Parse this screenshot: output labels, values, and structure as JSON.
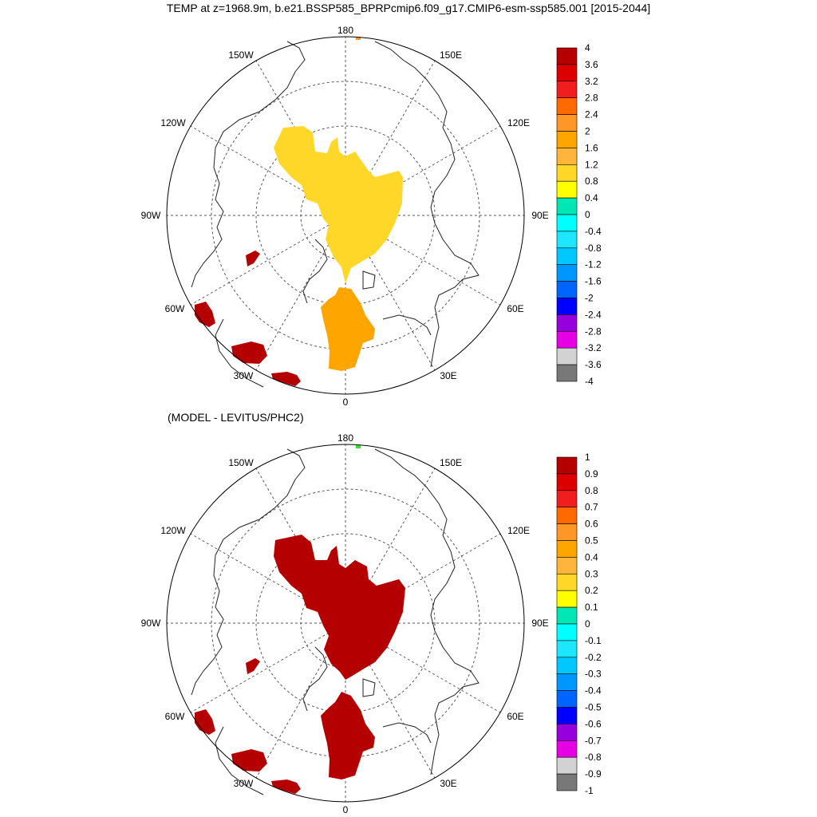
{
  "title": "TEMP at z=1968.9m, b.e21.BSSP585_BPRPcmip6.f09_g17.CMIP6-esm-ssp585.001 [2015-2044]",
  "subtitle": "(MODEL - LEVITUS/PHC2)",
  "longitude_labels": {
    "lon_180": "180",
    "lon_150e": "150E",
    "lon_120e": "120E",
    "lon_90e": "90E",
    "lon_60e": "60E",
    "lon_30e": "30E",
    "lon_0": "0",
    "lon_30w": "30W",
    "lon_60w": "60W",
    "lon_90w": "90W",
    "lon_120w": "120W",
    "lon_150w": "150W"
  },
  "top_colorbar": {
    "labels": [
      "4",
      "3.6",
      "3.2",
      "2.8",
      "2.4",
      "2",
      "1.6",
      "1.2",
      "0.8",
      "0.4",
      "0",
      "-0.4",
      "-0.8",
      "-1.2",
      "-1.6",
      "-2",
      "-2.4",
      "-2.8",
      "-3.2",
      "-3.6",
      "-4"
    ]
  },
  "bottom_colorbar": {
    "labels": [
      "1",
      "0.9",
      "0.8",
      "0.7",
      "0.6",
      "0.5",
      "0.4",
      "0.3",
      "0.2",
      "0.1",
      "0",
      "-0.1",
      "-0.2",
      "-0.3",
      "-0.4",
      "-0.5",
      "-0.6",
      "-0.7",
      "-0.8",
      "-0.9",
      "-1"
    ]
  },
  "colorbar_colors": [
    "#b40000",
    "#dc0000",
    "#f01e1e",
    "#ff3c14",
    "#f07800",
    "#ff9628",
    "#ffa500",
    "#ffb43c",
    "#ffd728",
    "#ffff00",
    "#32e632",
    "#00e678",
    "#00e6b4",
    "#00ffff",
    "#1ee6ff",
    "#00c8ff",
    "#0096ff",
    "#0064ff",
    "#0000ff",
    "#9600dc",
    "#e600e6",
    "#d2d2d2",
    "#787878"
  ]
}
